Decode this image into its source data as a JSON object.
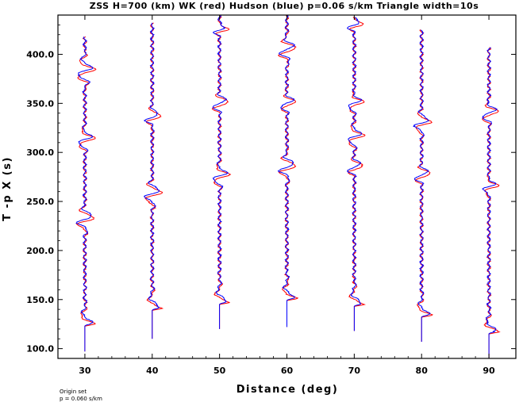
{
  "chart_data": {
    "type": "line",
    "title": "ZSS H=700 (km) WK (red) Hudson (blue) p=0.06 s/km Triangle width=10s",
    "xlabel": "Distance (deg)",
    "ylabel": "T -p X (s)",
    "xlim": [
      26,
      94
    ],
    "ylim": [
      90,
      440
    ],
    "x_ticks": [
      "30",
      "40",
      "50",
      "60",
      "70",
      "80",
      "90"
    ],
    "y_ticks": [
      "100.0",
      "150.0",
      "200.0",
      "250.0",
      "300.0",
      "350.0",
      "400.0"
    ],
    "grid": false,
    "legend": "none",
    "series_colors": {
      "wk": "#ff0000",
      "hudson": "#0000ff"
    },
    "traces": [
      {
        "distance": 30,
        "start": 97,
        "end": 418,
        "first_arrival": 125,
        "packets": [
          [
            232,
            12
          ],
          [
            313,
            10
          ],
          [
            383,
            14
          ]
        ]
      },
      {
        "distance": 40,
        "start": 110,
        "end": 432,
        "first_arrival": 141,
        "packets": [
          [
            258,
            12
          ],
          [
            336,
            8
          ]
        ]
      },
      {
        "distance": 50,
        "start": 120,
        "end": 440,
        "first_arrival": 147,
        "packets": [
          [
            276,
            10
          ],
          [
            350,
            9
          ],
          [
            425,
            5
          ]
        ]
      },
      {
        "distance": 60,
        "start": 122,
        "end": 440,
        "first_arrival": 151,
        "packets": [
          [
            285,
            12
          ],
          [
            350,
            8
          ],
          [
            405,
            12
          ]
        ]
      },
      {
        "distance": 70,
        "start": 118,
        "end": 438,
        "first_arrival": 145,
        "packets": [
          [
            285,
            8
          ],
          [
            316,
            10
          ],
          [
            350,
            8
          ],
          [
            430,
            6
          ]
        ]
      },
      {
        "distance": 80,
        "start": 107,
        "end": 425,
        "first_arrival": 134,
        "packets": [
          [
            277,
            8
          ],
          [
            330,
            10
          ]
        ]
      },
      {
        "distance": 90,
        "start": 90,
        "end": 407,
        "first_arrival": 117,
        "packets": [
          [
            265,
            7
          ],
          [
            340,
            10
          ]
        ]
      }
    ],
    "annotations": [
      "Origin set",
      "p = 0.060 s/km"
    ]
  }
}
